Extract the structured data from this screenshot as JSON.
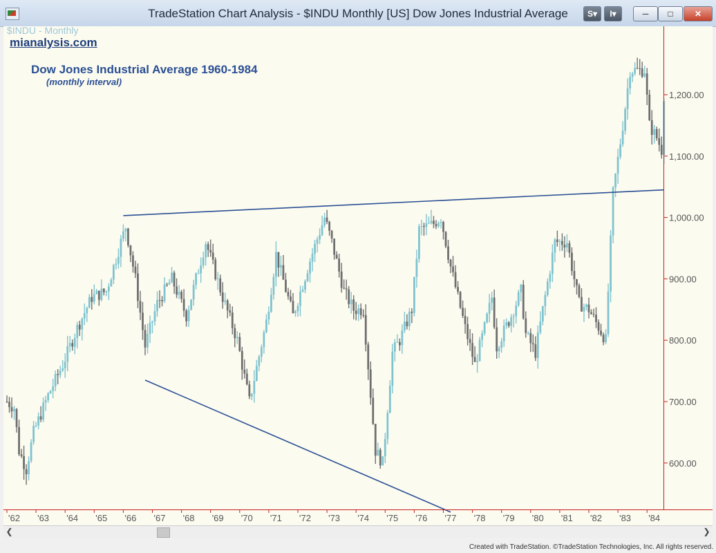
{
  "window": {
    "title": "TradeStation Chart Analysis - $INDU Monthly [US] Dow Jones Industrial Average",
    "btn_s": "S",
    "btn_i": "I"
  },
  "chart_header": {
    "symbol_label": "$INDU - Monthly",
    "brand": "mianalysis.com",
    "title": "Dow Jones Industrial Average 1960-1984",
    "subtitle": "(monthly interval)"
  },
  "footer": "Created with TradeStation. ©TradeStation Technologies, Inc. All rights reserved.",
  "colors": {
    "up_bar": "#7fc3cf",
    "down_bar": "#6e6e6e",
    "trendline": "#2a4f93",
    "axis_line": "#c81e1e",
    "background": "#fcfbf0"
  },
  "chart_data": {
    "type": "line",
    "bar_style": "ohlc-bars",
    "series": [
      {
        "x": [
          "1962-01",
          "1962-04",
          "1962-06",
          "1962-09",
          "1962-12",
          "1963-06",
          "1963-12",
          "1964-06",
          "1964-12",
          "1965-06",
          "1965-12",
          "1966-02",
          "1966-06",
          "1966-10",
          "1967-03",
          "1967-09",
          "1968-03",
          "1968-11",
          "1969-06",
          "1969-12",
          "1970-05",
          "1970-12",
          "1971-04",
          "1971-11",
          "1972-06",
          "1972-12",
          "1973-03",
          "1973-08",
          "1973-12",
          "1974-04",
          "1974-09",
          "1974-12",
          "1975-04",
          "1975-07",
          "1975-12",
          "1976-03",
          "1976-09",
          "1976-12",
          "1977-04",
          "1977-10",
          "1978-02",
          "1978-06",
          "1978-09",
          "1978-11",
          "1979-05",
          "1979-09",
          "1979-11",
          "1980-03",
          "1980-06",
          "1980-11",
          "1981-04",
          "1981-09",
          "1982-01",
          "1982-08",
          "1982-11",
          "1983-03",
          "1983-06",
          "1983-09",
          "1983-12",
          "1984-02",
          "1984-05",
          "1984-07",
          "1984-08"
        ],
        "values": [
          700,
          690,
          620,
          590,
          650,
          710,
          760,
          820,
          870,
          880,
          960,
          985,
          900,
          790,
          860,
          900,
          840,
          960,
          870,
          800,
          700,
          830,
          940,
          840,
          930,
          1000,
          960,
          880,
          850,
          850,
          620,
          600,
          780,
          800,
          850,
          980,
          990,
          1000,
          920,
          820,
          760,
          820,
          870,
          790,
          840,
          880,
          810,
          780,
          850,
          960,
          960,
          860,
          850,
          800,
          1040,
          1150,
          1240,
          1240,
          1240,
          1150,
          1130,
          1110,
          1200
        ]
      }
    ],
    "trendlines": [
      {
        "x": [
          "1966-01",
          "1984-08"
        ],
        "values": [
          1003,
          1045
        ]
      },
      {
        "x": [
          "1966-10",
          "1977-04"
        ],
        "values": [
          735,
          520
        ]
      }
    ],
    "yticks": [
      "1,200.00",
      "1,100.00",
      "1,000.00",
      "900.00",
      "800.00",
      "700.00",
      "600.00"
    ],
    "xticks": [
      "'62",
      "'63",
      "'64",
      "'65",
      "'66",
      "'67",
      "'68",
      "'69",
      "'70",
      "'71",
      "'72",
      "'73",
      "'74",
      "'75",
      "'76",
      "'77",
      "'78",
      "'79",
      "'80",
      "'81",
      "'82",
      "'83",
      "'84"
    ],
    "xlim": [
      "1962-01",
      "1984-08"
    ],
    "ylim": [
      500,
      1300
    ],
    "grid": false,
    "legend": "none"
  }
}
